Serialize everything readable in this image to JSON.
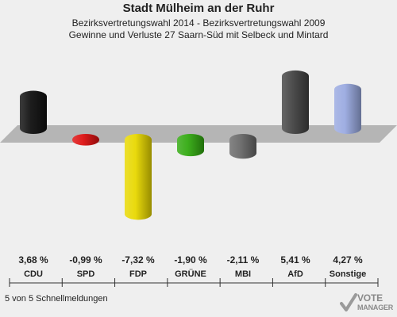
{
  "header": {
    "title": "Stadt Mülheim an der Ruhr",
    "subtitle_line1": "Bezirksvertretungswahl 2014 - Bezirksvertretungswahl 2009",
    "subtitle_line2": "Gewinne und Verluste 27 Saarn-Süd mit Selbeck und Mintard"
  },
  "chart_data": {
    "type": "bar",
    "categories": [
      "CDU",
      "SPD",
      "FDP",
      "GRÜNE",
      "MBI",
      "AfD",
      "Sonstige"
    ],
    "values": [
      3.68,
      -0.99,
      -7.32,
      -1.9,
      -2.11,
      5.41,
      4.27
    ],
    "value_labels": [
      "3,68 %",
      "-0,99 %",
      "-7,32 %",
      "-1,90 %",
      "-2,11 %",
      "5,41 %",
      "4,27 %"
    ],
    "colors": [
      "#111111",
      "#dd1111",
      "#e8d800",
      "#33aa11",
      "#6a6a6a",
      "#444444",
      "#9aaae0"
    ],
    "ylim": [
      -7.32,
      5.41
    ],
    "grid": false,
    "legend": "none"
  },
  "footer": {
    "note": "5 von 5 Schnellmeldungen",
    "logo_line1": "VOTE",
    "logo_line2": "MANAGER"
  }
}
